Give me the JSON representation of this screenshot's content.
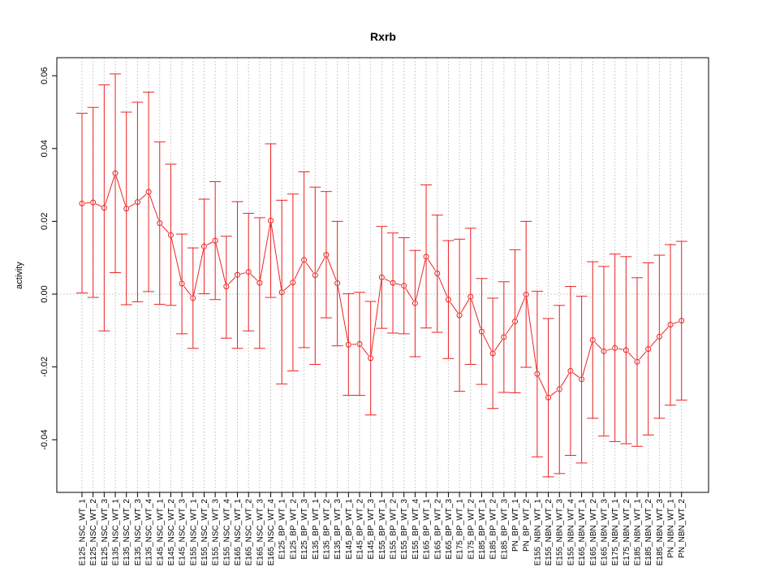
{
  "chart_data": {
    "type": "line",
    "title": "Rxrb",
    "xlabel": "",
    "ylabel": "activity",
    "ylim": [
      -0.055,
      0.065
    ],
    "yticks": [
      -0.04,
      -0.02,
      0.0,
      0.02,
      0.04,
      0.06
    ],
    "ytick_labels": [
      "-0.04",
      "-0.02",
      "0.00",
      "0.02",
      "0.04",
      "0.06"
    ],
    "grid": "vertical dotted",
    "reference_line": 0,
    "colors": {
      "series": "#ee2222",
      "grid": "#cccccc",
      "axis": "#000000"
    },
    "categories": [
      "E125_NSC_WT_1",
      "E125_NSC_WT_2",
      "E125_NSC_WT_3",
      "E135_NSC_WT_1",
      "E135_NSC_WT_2",
      "E135_NSC_WT_3",
      "E135_NSC_WT_4",
      "E145_NSC_WT_1",
      "E145_NSC_WT_2",
      "E145_NSC_WT_3",
      "E155_NSC_WT_1",
      "E155_NSC_WT_2",
      "E155_NSC_WT_3",
      "E155_NSC_WT_4",
      "E165_NSC_WT_1",
      "E165_NSC_WT_2",
      "E165_NSC_WT_3",
      "E165_NSC_WT_4",
      "E125_BP_WT_1",
      "E125_BP_WT_2",
      "E125_BP_WT_3",
      "E135_BP_WT_1",
      "E135_BP_WT_2",
      "E135_BP_WT_3",
      "E145_BP_WT_1",
      "E145_BP_WT_2",
      "E145_BP_WT_3",
      "E155_BP_WT_1",
      "E155_BP_WT_2",
      "E155_BP_WT_3",
      "E155_BP_WT_4",
      "E165_BP_WT_1",
      "E165_BP_WT_2",
      "E165_BP_WT_3",
      "E175_BP_WT_1",
      "E175_BP_WT_2",
      "E185_BP_WT_1",
      "E185_BP_WT_2",
      "E185_BP_WT_3",
      "PN_BP_WT_1",
      "PN_BP_WT_2",
      "E155_NBN_WT_1",
      "E155_NBN_WT_2",
      "E155_NBN_WT_3",
      "E155_NBN_WT_4",
      "E165_NBN_WT_1",
      "E165_NBN_WT_2",
      "E165_NBN_WT_3",
      "E175_NBN_WT_1",
      "E175_NBN_WT_2",
      "E185_NBN_WT_1",
      "E185_NBN_WT_2",
      "E185_NBN_WT_3",
      "PN_NBN_WT_1",
      "PN_NBN_WT_2"
    ],
    "series": [
      {
        "values": [
          0.0249,
          0.0252,
          0.0237,
          0.0332,
          0.0235,
          0.0253,
          0.0281,
          0.0195,
          0.0162,
          0.0029,
          -0.0011,
          0.0131,
          0.0147,
          0.0021,
          0.0053,
          0.0061,
          0.0031,
          0.0202,
          0.0005,
          0.0032,
          0.0094,
          0.0052,
          0.0108,
          0.003,
          -0.0139,
          -0.0137,
          -0.0176,
          0.0046,
          0.0031,
          0.0023,
          -0.0025,
          0.0103,
          0.0057,
          -0.0015,
          -0.0058,
          -0.0007,
          -0.0103,
          -0.0163,
          -0.0118,
          -0.0075,
          -0.0001,
          -0.0219,
          -0.0284,
          -0.0261,
          -0.0211,
          -0.0234,
          -0.0126,
          -0.0157,
          -0.0148,
          -0.0154,
          -0.0186,
          -0.0151,
          -0.0117,
          -0.0084,
          -0.0073
        ],
        "upper": [
          0.0497,
          0.0513,
          0.0575,
          0.0605,
          0.05,
          0.0527,
          0.0555,
          0.0418,
          0.0357,
          0.0165,
          0.0127,
          0.0261,
          0.0309,
          0.0159,
          0.0254,
          0.0222,
          0.021,
          0.0413,
          0.0258,
          0.0275,
          0.0336,
          0.0294,
          0.0282,
          0.02,
          0.0001,
          0.0005,
          -0.002,
          0.0186,
          0.0168,
          0.0155,
          0.012,
          0.03,
          0.0217,
          0.0147,
          0.0151,
          0.0181,
          0.0043,
          -0.0011,
          0.0034,
          0.0122,
          0.02,
          0.0008,
          -0.0067,
          -0.0031,
          0.0021,
          -0.0006,
          0.0089,
          0.0076,
          0.011,
          0.0103,
          0.0045,
          0.0086,
          0.0107,
          0.0136,
          0.0145
        ],
        "lower": [
          0.0003,
          -0.0009,
          -0.0101,
          0.0059,
          -0.0029,
          -0.0021,
          0.0007,
          -0.0028,
          -0.0031,
          -0.0109,
          -0.0149,
          0.0001,
          -0.0015,
          -0.0121,
          -0.0149,
          -0.0101,
          -0.0149,
          -0.0009,
          -0.0247,
          -0.0211,
          -0.0147,
          -0.0193,
          -0.0065,
          -0.0142,
          -0.0278,
          -0.0278,
          -0.0332,
          -0.0094,
          -0.0107,
          -0.0109,
          -0.0172,
          -0.0093,
          -0.0105,
          -0.0177,
          -0.0267,
          -0.0193,
          -0.0248,
          -0.0314,
          -0.027,
          -0.0271,
          -0.0201,
          -0.0447,
          -0.0502,
          -0.0493,
          -0.0443,
          -0.0464,
          -0.0341,
          -0.039,
          -0.0405,
          -0.0411,
          -0.0418,
          -0.0387,
          -0.0341,
          -0.0305,
          -0.0291
        ]
      }
    ]
  }
}
